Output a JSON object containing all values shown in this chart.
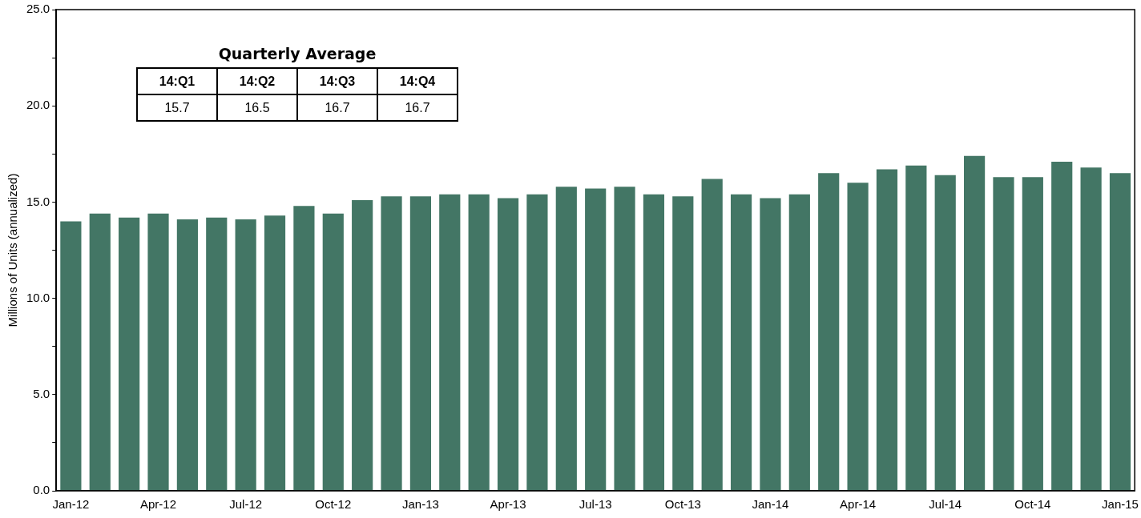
{
  "chart_data": {
    "type": "bar",
    "ylabel": "Millions of Units (annualized)",
    "categories": [
      "Jan-12",
      null,
      null,
      "Apr-12",
      null,
      null,
      "Jul-12",
      null,
      null,
      "Oct-12",
      null,
      null,
      "Jan-13",
      null,
      null,
      "Apr-13",
      null,
      null,
      "Jul-13",
      null,
      null,
      "Oct-13",
      null,
      null,
      "Jan-14",
      null,
      null,
      "Apr-14",
      null,
      null,
      "Jul-14",
      null,
      null,
      "Oct-14",
      null,
      null,
      "Jan-15"
    ],
    "values": [
      14.0,
      14.4,
      14.2,
      14.4,
      14.1,
      14.2,
      14.1,
      14.3,
      14.8,
      14.4,
      15.1,
      15.3,
      15.3,
      15.4,
      15.4,
      15.2,
      15.4,
      15.8,
      15.7,
      15.8,
      15.4,
      15.3,
      16.2,
      15.4,
      15.2,
      15.4,
      16.5,
      16.0,
      16.7,
      16.9,
      16.4,
      17.4,
      16.3,
      16.3,
      17.1,
      16.8,
      16.5
    ],
    "color": "#437665",
    "ylim": [
      0,
      25
    ],
    "yticks": [
      {
        "value": 0,
        "label": "0.0"
      },
      {
        "value": 2.5,
        "label": null
      },
      {
        "value": 5,
        "label": "5.0"
      },
      {
        "value": 7.5,
        "label": null
      },
      {
        "value": 10,
        "label": "10.0"
      },
      {
        "value": 12.5,
        "label": null
      },
      {
        "value": 15,
        "label": "15.0"
      },
      {
        "value": 17.5,
        "label": null
      },
      {
        "value": 20,
        "label": "20.0"
      },
      {
        "value": 22.5,
        "label": null
      },
      {
        "value": 25,
        "label": "25.0"
      }
    ],
    "grid": false,
    "legend": false,
    "annotations": [
      "Quarterly Average",
      "14:Q1",
      "14:Q2",
      "14:Q3",
      "14:Q4",
      "15.7",
      "16.5",
      "16.7",
      "16.7"
    ]
  }
}
